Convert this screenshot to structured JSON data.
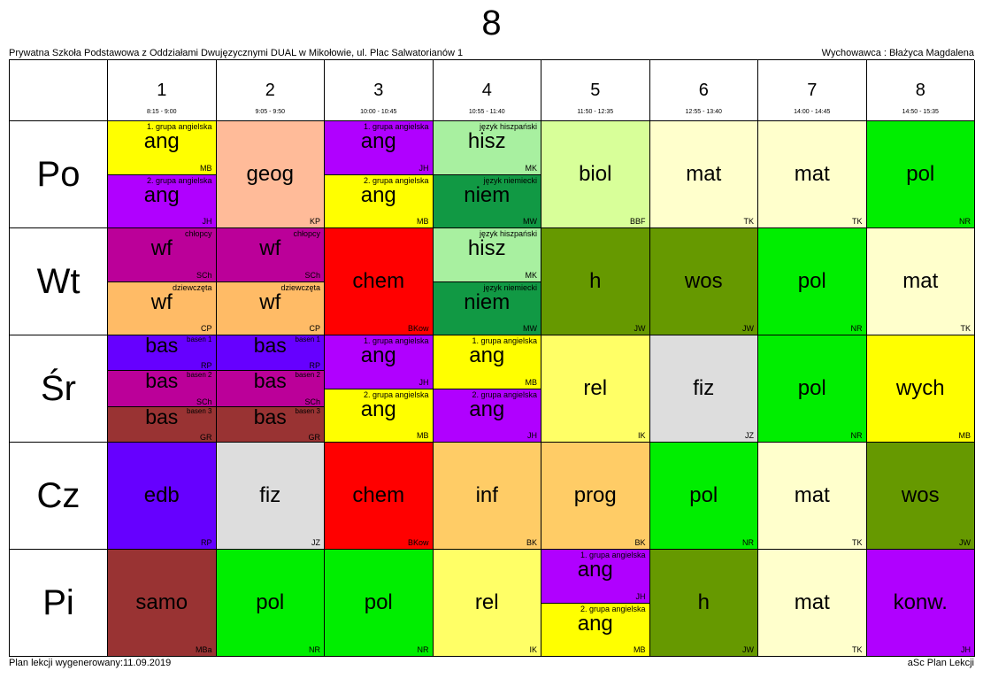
{
  "class_title": "8",
  "school": "Prywatna Szkoła Podstawowa z Oddziałami Dwujęzycznymi DUAL w Mikołowie, ul. Plac Salwatorianów 1",
  "homeroom": "Wychowawca : Błażyca Magdalena",
  "footer_left": "Plan lekcji wygenerowany:11.09.2019",
  "footer_right": "aSc Plan Lekcji",
  "periods": [
    {
      "num": "1",
      "time": "8:15 - 9:00"
    },
    {
      "num": "2",
      "time": "9:05 - 9:50"
    },
    {
      "num": "3",
      "time": "10:00 - 10:45"
    },
    {
      "num": "4",
      "time": "10:55 - 11:40"
    },
    {
      "num": "5",
      "time": "11:50 - 12:35"
    },
    {
      "num": "6",
      "time": "12:55 - 13:40"
    },
    {
      "num": "7",
      "time": "14:00 - 14:45"
    },
    {
      "num": "8",
      "time": "14:50 - 15:35"
    }
  ],
  "days": [
    {
      "name": "Po",
      "slots": [
        [
          {
            "group": "1. grupa angielska",
            "subject": "ang",
            "teacher": "MB",
            "color": "#ffff00"
          },
          {
            "group": "2. grupa angielska",
            "subject": "ang",
            "teacher": "JH",
            "color": "#b000ff"
          }
        ],
        [
          {
            "group": "",
            "subject": "geog",
            "teacher": "KP",
            "color": "#ffbb99"
          }
        ],
        [
          {
            "group": "1. grupa angielska",
            "subject": "ang",
            "teacher": "JH",
            "color": "#b000ff"
          },
          {
            "group": "2. grupa angielska",
            "subject": "ang",
            "teacher": "MB",
            "color": "#ffff00"
          }
        ],
        [
          {
            "group": "język hiszpański",
            "subject": "hisz",
            "teacher": "MK",
            "color": "#a8f0a0"
          },
          {
            "group": "język niemiecki",
            "subject": "niem",
            "teacher": "MW",
            "color": "#119944"
          }
        ],
        [
          {
            "group": "",
            "subject": "biol",
            "teacher": "BBF",
            "color": "#d8ff99"
          }
        ],
        [
          {
            "group": "",
            "subject": "mat",
            "teacher": "TK",
            "color": "#ffffcc"
          }
        ],
        [
          {
            "group": "",
            "subject": "mat",
            "teacher": "TK",
            "color": "#ffffcc"
          }
        ],
        [
          {
            "group": "",
            "subject": "pol",
            "teacher": "NR",
            "color": "#00ee00"
          }
        ]
      ]
    },
    {
      "name": "Wt",
      "slots": [
        [
          {
            "group": "chłopcy",
            "subject": "wf",
            "teacher": "SCh",
            "color": "#bb0099"
          },
          {
            "group": "dziewczęta",
            "subject": "wf",
            "teacher": "CP",
            "color": "#ffbb66"
          }
        ],
        [
          {
            "group": "chłopcy",
            "subject": "wf",
            "teacher": "SCh",
            "color": "#bb0099"
          },
          {
            "group": "dziewczęta",
            "subject": "wf",
            "teacher": "CP",
            "color": "#ffbb66"
          }
        ],
        [
          {
            "group": "",
            "subject": "chem",
            "teacher": "BKow",
            "color": "#ff0000"
          }
        ],
        [
          {
            "group": "język hiszpański",
            "subject": "hisz",
            "teacher": "MK",
            "color": "#a8f0a0"
          },
          {
            "group": "język niemiecki",
            "subject": "niem",
            "teacher": "MW",
            "color": "#119944"
          }
        ],
        [
          {
            "group": "",
            "subject": "h",
            "teacher": "JW",
            "color": "#669900"
          }
        ],
        [
          {
            "group": "",
            "subject": "wos",
            "teacher": "JW",
            "color": "#669900"
          }
        ],
        [
          {
            "group": "",
            "subject": "pol",
            "teacher": "NR",
            "color": "#00ee00"
          }
        ],
        [
          {
            "group": "",
            "subject": "mat",
            "teacher": "TK",
            "color": "#ffffcc"
          }
        ]
      ]
    },
    {
      "name": "Śr",
      "slots": [
        [
          {
            "group": "basen 1",
            "subject": "bas",
            "teacher": "RP",
            "color": "#6600ff"
          },
          {
            "group": "basen 2",
            "subject": "bas",
            "teacher": "SCh",
            "color": "#bb0099"
          },
          {
            "group": "basen 3",
            "subject": "bas",
            "teacher": "GR",
            "color": "#993333"
          }
        ],
        [
          {
            "group": "basen 1",
            "subject": "bas",
            "teacher": "RP",
            "color": "#6600ff"
          },
          {
            "group": "basen 2",
            "subject": "bas",
            "teacher": "SCh",
            "color": "#bb0099"
          },
          {
            "group": "basen 3",
            "subject": "bas",
            "teacher": "GR",
            "color": "#993333"
          }
        ],
        [
          {
            "group": "1. grupa angielska",
            "subject": "ang",
            "teacher": "JH",
            "color": "#b000ff"
          },
          {
            "group": "2. grupa angielska",
            "subject": "ang",
            "teacher": "MB",
            "color": "#ffff00"
          }
        ],
        [
          {
            "group": "1. grupa angielska",
            "subject": "ang",
            "teacher": "MB",
            "color": "#ffff00"
          },
          {
            "group": "2. grupa angielska",
            "subject": "ang",
            "teacher": "JH",
            "color": "#b000ff"
          }
        ],
        [
          {
            "group": "",
            "subject": "rel",
            "teacher": "IK",
            "color": "#ffff66"
          }
        ],
        [
          {
            "group": "",
            "subject": "fiz",
            "teacher": "JZ",
            "color": "#dddddd"
          }
        ],
        [
          {
            "group": "",
            "subject": "pol",
            "teacher": "NR",
            "color": "#00ee00"
          }
        ],
        [
          {
            "group": "",
            "subject": "wych",
            "teacher": "MB",
            "color": "#ffff00"
          }
        ]
      ]
    },
    {
      "name": "Cz",
      "slots": [
        [
          {
            "group": "",
            "subject": "edb",
            "teacher": "RP",
            "color": "#6600ff"
          }
        ],
        [
          {
            "group": "",
            "subject": "fiz",
            "teacher": "JZ",
            "color": "#dddddd"
          }
        ],
        [
          {
            "group": "",
            "subject": "chem",
            "teacher": "BKow",
            "color": "#ff0000"
          }
        ],
        [
          {
            "group": "",
            "subject": "inf",
            "teacher": "BK",
            "color": "#ffcc66"
          }
        ],
        [
          {
            "group": "",
            "subject": "prog",
            "teacher": "BK",
            "color": "#ffcc66"
          }
        ],
        [
          {
            "group": "",
            "subject": "pol",
            "teacher": "NR",
            "color": "#00ee00"
          }
        ],
        [
          {
            "group": "",
            "subject": "mat",
            "teacher": "TK",
            "color": "#ffffcc"
          }
        ],
        [
          {
            "group": "",
            "subject": "wos",
            "teacher": "JW",
            "color": "#669900"
          }
        ]
      ]
    },
    {
      "name": "Pi",
      "slots": [
        [
          {
            "group": "",
            "subject": "samo",
            "teacher": "MBa",
            "color": "#993333"
          }
        ],
        [
          {
            "group": "",
            "subject": "pol",
            "teacher": "NR",
            "color": "#00ee00"
          }
        ],
        [
          {
            "group": "",
            "subject": "pol",
            "teacher": "NR",
            "color": "#00ee00"
          }
        ],
        [
          {
            "group": "",
            "subject": "rel",
            "teacher": "IK",
            "color": "#ffff66"
          }
        ],
        [
          {
            "group": "1. grupa angielska",
            "subject": "ang",
            "teacher": "JH",
            "color": "#b000ff"
          },
          {
            "group": "2. grupa angielska",
            "subject": "ang",
            "teacher": "MB",
            "color": "#ffff00"
          }
        ],
        [
          {
            "group": "",
            "subject": "h",
            "teacher": "JW",
            "color": "#669900"
          }
        ],
        [
          {
            "group": "",
            "subject": "mat",
            "teacher": "TK",
            "color": "#ffffcc"
          }
        ],
        [
          {
            "group": "",
            "subject": "konw.",
            "teacher": "JH",
            "color": "#b000ff"
          }
        ]
      ]
    }
  ]
}
